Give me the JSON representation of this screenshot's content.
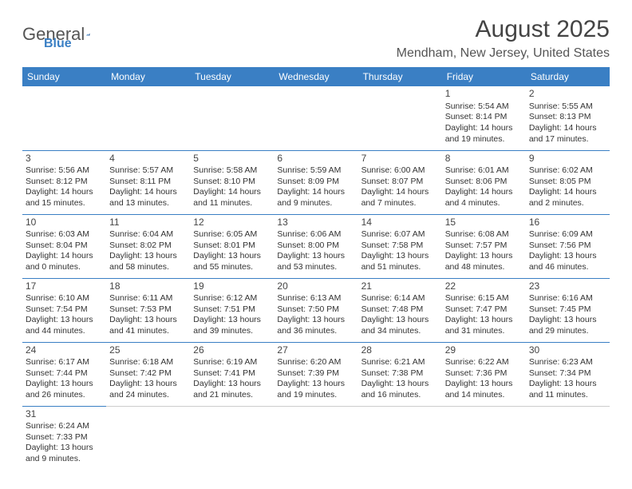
{
  "logo": {
    "general": "General",
    "blue": "Blue"
  },
  "title": "August 2025",
  "location": "Mendham, New Jersey, United States",
  "colors": {
    "header_bg": "#3a7fc4",
    "header_text": "#ffffff",
    "cell_border": "#3a7fc4",
    "text": "#333333"
  },
  "dayHeaders": [
    "Sunday",
    "Monday",
    "Tuesday",
    "Wednesday",
    "Thursday",
    "Friday",
    "Saturday"
  ],
  "weeks": [
    [
      null,
      null,
      null,
      null,
      null,
      {
        "day": "1",
        "sunrise": "Sunrise: 5:54 AM",
        "sunset": "Sunset: 8:14 PM",
        "daylight": "Daylight: 14 hours and 19 minutes."
      },
      {
        "day": "2",
        "sunrise": "Sunrise: 5:55 AM",
        "sunset": "Sunset: 8:13 PM",
        "daylight": "Daylight: 14 hours and 17 minutes."
      }
    ],
    [
      {
        "day": "3",
        "sunrise": "Sunrise: 5:56 AM",
        "sunset": "Sunset: 8:12 PM",
        "daylight": "Daylight: 14 hours and 15 minutes."
      },
      {
        "day": "4",
        "sunrise": "Sunrise: 5:57 AM",
        "sunset": "Sunset: 8:11 PM",
        "daylight": "Daylight: 14 hours and 13 minutes."
      },
      {
        "day": "5",
        "sunrise": "Sunrise: 5:58 AM",
        "sunset": "Sunset: 8:10 PM",
        "daylight": "Daylight: 14 hours and 11 minutes."
      },
      {
        "day": "6",
        "sunrise": "Sunrise: 5:59 AM",
        "sunset": "Sunset: 8:09 PM",
        "daylight": "Daylight: 14 hours and 9 minutes."
      },
      {
        "day": "7",
        "sunrise": "Sunrise: 6:00 AM",
        "sunset": "Sunset: 8:07 PM",
        "daylight": "Daylight: 14 hours and 7 minutes."
      },
      {
        "day": "8",
        "sunrise": "Sunrise: 6:01 AM",
        "sunset": "Sunset: 8:06 PM",
        "daylight": "Daylight: 14 hours and 4 minutes."
      },
      {
        "day": "9",
        "sunrise": "Sunrise: 6:02 AM",
        "sunset": "Sunset: 8:05 PM",
        "daylight": "Daylight: 14 hours and 2 minutes."
      }
    ],
    [
      {
        "day": "10",
        "sunrise": "Sunrise: 6:03 AM",
        "sunset": "Sunset: 8:04 PM",
        "daylight": "Daylight: 14 hours and 0 minutes."
      },
      {
        "day": "11",
        "sunrise": "Sunrise: 6:04 AM",
        "sunset": "Sunset: 8:02 PM",
        "daylight": "Daylight: 13 hours and 58 minutes."
      },
      {
        "day": "12",
        "sunrise": "Sunrise: 6:05 AM",
        "sunset": "Sunset: 8:01 PM",
        "daylight": "Daylight: 13 hours and 55 minutes."
      },
      {
        "day": "13",
        "sunrise": "Sunrise: 6:06 AM",
        "sunset": "Sunset: 8:00 PM",
        "daylight": "Daylight: 13 hours and 53 minutes."
      },
      {
        "day": "14",
        "sunrise": "Sunrise: 6:07 AM",
        "sunset": "Sunset: 7:58 PM",
        "daylight": "Daylight: 13 hours and 51 minutes."
      },
      {
        "day": "15",
        "sunrise": "Sunrise: 6:08 AM",
        "sunset": "Sunset: 7:57 PM",
        "daylight": "Daylight: 13 hours and 48 minutes."
      },
      {
        "day": "16",
        "sunrise": "Sunrise: 6:09 AM",
        "sunset": "Sunset: 7:56 PM",
        "daylight": "Daylight: 13 hours and 46 minutes."
      }
    ],
    [
      {
        "day": "17",
        "sunrise": "Sunrise: 6:10 AM",
        "sunset": "Sunset: 7:54 PM",
        "daylight": "Daylight: 13 hours and 44 minutes."
      },
      {
        "day": "18",
        "sunrise": "Sunrise: 6:11 AM",
        "sunset": "Sunset: 7:53 PM",
        "daylight": "Daylight: 13 hours and 41 minutes."
      },
      {
        "day": "19",
        "sunrise": "Sunrise: 6:12 AM",
        "sunset": "Sunset: 7:51 PM",
        "daylight": "Daylight: 13 hours and 39 minutes."
      },
      {
        "day": "20",
        "sunrise": "Sunrise: 6:13 AM",
        "sunset": "Sunset: 7:50 PM",
        "daylight": "Daylight: 13 hours and 36 minutes."
      },
      {
        "day": "21",
        "sunrise": "Sunrise: 6:14 AM",
        "sunset": "Sunset: 7:48 PM",
        "daylight": "Daylight: 13 hours and 34 minutes."
      },
      {
        "day": "22",
        "sunrise": "Sunrise: 6:15 AM",
        "sunset": "Sunset: 7:47 PM",
        "daylight": "Daylight: 13 hours and 31 minutes."
      },
      {
        "day": "23",
        "sunrise": "Sunrise: 6:16 AM",
        "sunset": "Sunset: 7:45 PM",
        "daylight": "Daylight: 13 hours and 29 minutes."
      }
    ],
    [
      {
        "day": "24",
        "sunrise": "Sunrise: 6:17 AM",
        "sunset": "Sunset: 7:44 PM",
        "daylight": "Daylight: 13 hours and 26 minutes."
      },
      {
        "day": "25",
        "sunrise": "Sunrise: 6:18 AM",
        "sunset": "Sunset: 7:42 PM",
        "daylight": "Daylight: 13 hours and 24 minutes."
      },
      {
        "day": "26",
        "sunrise": "Sunrise: 6:19 AM",
        "sunset": "Sunset: 7:41 PM",
        "daylight": "Daylight: 13 hours and 21 minutes."
      },
      {
        "day": "27",
        "sunrise": "Sunrise: 6:20 AM",
        "sunset": "Sunset: 7:39 PM",
        "daylight": "Daylight: 13 hours and 19 minutes."
      },
      {
        "day": "28",
        "sunrise": "Sunrise: 6:21 AM",
        "sunset": "Sunset: 7:38 PM",
        "daylight": "Daylight: 13 hours and 16 minutes."
      },
      {
        "day": "29",
        "sunrise": "Sunrise: 6:22 AM",
        "sunset": "Sunset: 7:36 PM",
        "daylight": "Daylight: 13 hours and 14 minutes."
      },
      {
        "day": "30",
        "sunrise": "Sunrise: 6:23 AM",
        "sunset": "Sunset: 7:34 PM",
        "daylight": "Daylight: 13 hours and 11 minutes."
      }
    ],
    [
      {
        "day": "31",
        "sunrise": "Sunrise: 6:24 AM",
        "sunset": "Sunset: 7:33 PM",
        "daylight": "Daylight: 13 hours and 9 minutes."
      },
      null,
      null,
      null,
      null,
      null,
      null
    ]
  ]
}
